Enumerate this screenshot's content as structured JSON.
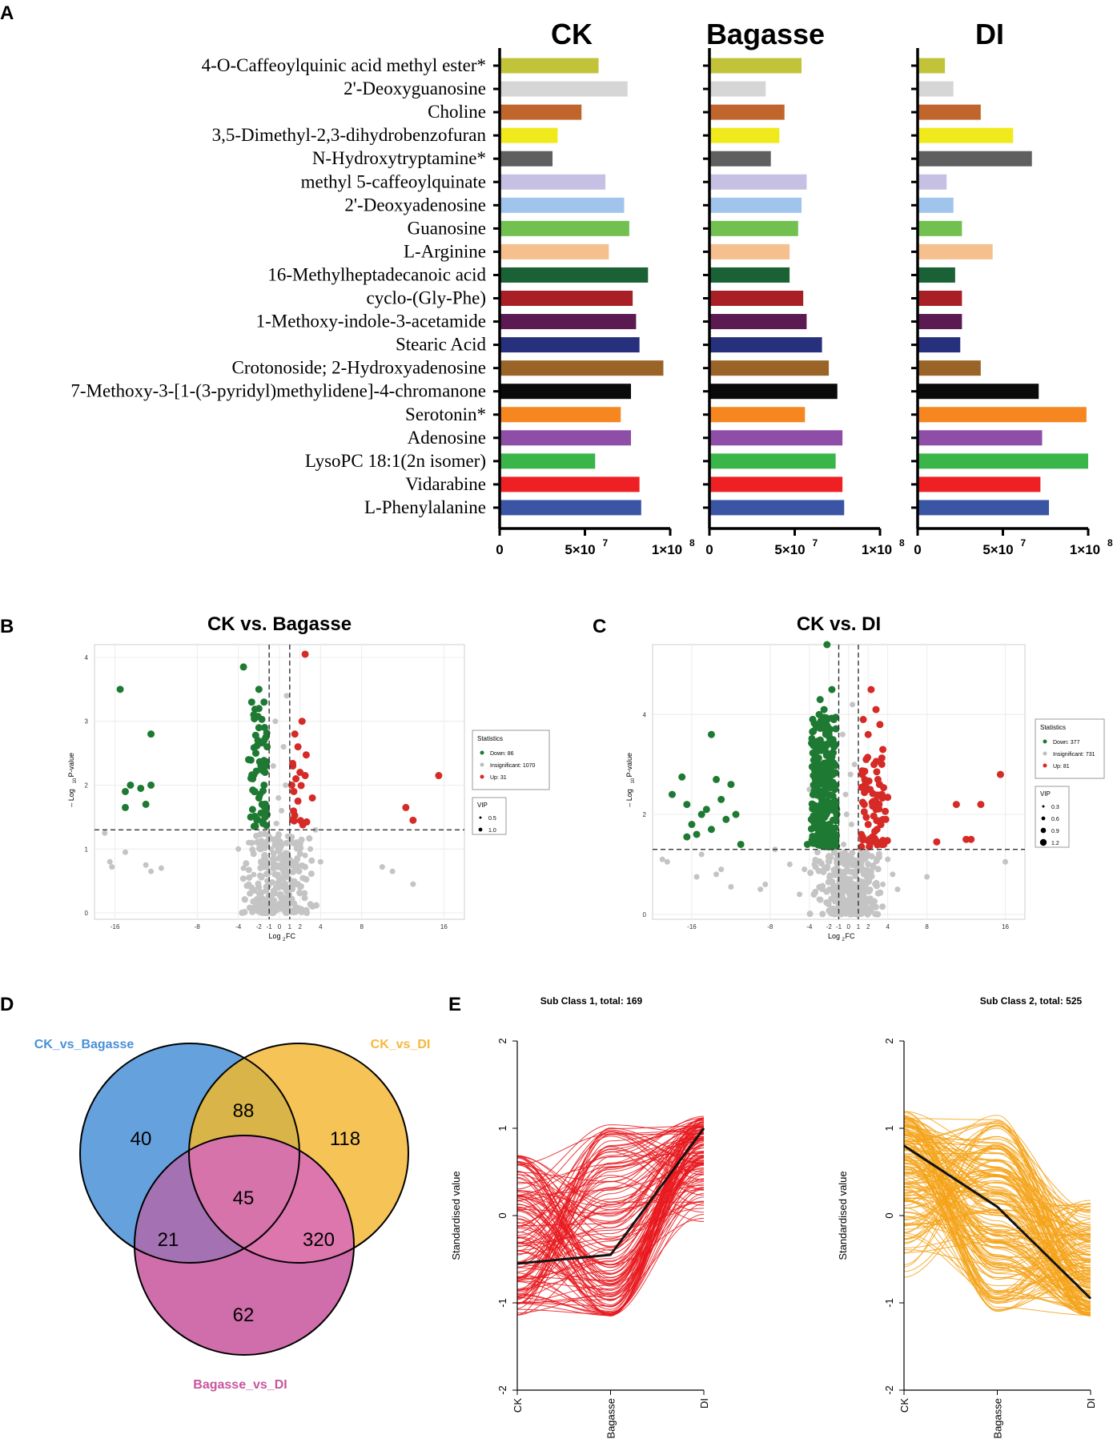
{
  "panel_labels": {
    "a": "A",
    "b": "B",
    "c": "C",
    "d": "D",
    "e": "E"
  },
  "chart_data": [
    {
      "id": "A",
      "type": "bar",
      "orientation": "horizontal",
      "panel_titles": [
        "CK",
        "Bagasse",
        "DI"
      ],
      "categories": [
        "4-O-Caffeoylquinic acid methyl ester*",
        "2'-Deoxyguanosine",
        "Choline",
        "3,5-Dimethyl-2,3-dihydrobenzofuran",
        "N-Hydroxytryptamine*",
        "methyl 5-caffeoylquinate",
        "2'-Deoxyadenosine",
        "Guanosine",
        "L-Arginine",
        "16-Methylheptadecanoic acid",
        "cyclo-(Gly-Phe)",
        "1-Methoxy-indole-3-acetamide",
        "Stearic Acid",
        "Crotonoside; 2-Hydroxyadenosine",
        "7-Methoxy-3-[1-(3-pyridyl)methylidene]-4-chromanone",
        "Serotonin*",
        "Adenosine",
        "LysoPC 18:1(2n isomer)",
        "Vidarabine",
        "L-Phenylalanine"
      ],
      "colors": [
        "#c1c43a",
        "#d6d6d6",
        "#c0652c",
        "#f0ea1c",
        "#5f5f5f",
        "#c6c0e4",
        "#a0c4ec",
        "#72c050",
        "#f5c08e",
        "#1a6236",
        "#a82025",
        "#5b1a52",
        "#27307c",
        "#9a6428",
        "#0a0a0a",
        "#f6861f",
        "#8e4ea8",
        "#3ab54a",
        "#ee2024",
        "#3a55a4"
      ],
      "series": [
        {
          "name": "CK",
          "values": [
            58,
            75,
            48,
            34,
            31,
            62,
            73,
            76,
            64,
            87,
            78,
            80,
            82,
            96,
            77,
            71,
            77,
            56,
            82,
            83
          ]
        },
        {
          "name": "Bagasse",
          "values": [
            54,
            33,
            44,
            41,
            36,
            57,
            54,
            52,
            47,
            47,
            55,
            57,
            66,
            70,
            75,
            56,
            78,
            74,
            78,
            79
          ]
        },
        {
          "name": "DI",
          "values": [
            16,
            21,
            37,
            56,
            67,
            17,
            21,
            26,
            44,
            22,
            26,
            26,
            25,
            37,
            71,
            99,
            73,
            100,
            72,
            77
          ]
        }
      ],
      "value_unit_note": "values in units of 1e6",
      "xlim": [
        0,
        100
      ],
      "xtick_labels": {
        "zero": "0",
        "mid_base": "5×10",
        "mid_exp": "7",
        "max_base": "1×10",
        "max_exp": "8"
      }
    },
    {
      "id": "B",
      "type": "scatter",
      "title": "CK vs. Bagasse",
      "xlabel": "Log",
      "xlabel_sub": "2",
      "xlabel_tail": "FC",
      "ylabel": "– Log",
      "ylabel_sub": "10",
      "ylabel_tail": "P-value",
      "xlim": [
        -18,
        18
      ],
      "ylim": [
        -0.1,
        4.2
      ],
      "xticks": [
        -16,
        -8,
        -4,
        -2,
        -1,
        0,
        1,
        2,
        4,
        8,
        16
      ],
      "yticks": [
        0,
        1,
        2,
        3,
        4
      ],
      "vlines": [
        -1,
        1
      ],
      "hline": 1.3,
      "legend": {
        "stats_title": "Statistics",
        "stats_items": [
          {
            "label": "Down: 86",
            "color": "#1e7a32"
          },
          {
            "label": "Insignificant: 1070",
            "color": "#bdbdbd"
          },
          {
            "label": "Up: 31",
            "color": "#d52a26"
          }
        ],
        "vip_title": "VIP",
        "vip_items": [
          "0.5",
          "1.0"
        ]
      },
      "points": {
        "down": [
          [
            -15.5,
            3.5
          ],
          [
            -15,
            1.65
          ],
          [
            -15,
            1.9
          ],
          [
            -14.5,
            2.0
          ],
          [
            -13.5,
            1.95
          ],
          [
            -13,
            1.7
          ],
          [
            -12.5,
            2.8
          ],
          [
            -12.5,
            2.0
          ],
          [
            -3.5,
            3.85
          ],
          [
            -2,
            3.5
          ],
          [
            -2,
            3.2
          ],
          [
            -1.5,
            3.3
          ],
          [
            -2.5,
            3.1
          ],
          [
            -2,
            2.9
          ],
          [
            -1.5,
            2.7
          ],
          [
            -2.3,
            2.5
          ],
          [
            -1.8,
            2.3
          ],
          [
            -2.6,
            2.1
          ],
          [
            -1.5,
            2.0
          ],
          [
            -2,
            1.8
          ],
          [
            -1.3,
            1.6
          ],
          [
            -2.2,
            1.45
          ],
          [
            -1.6,
            1.4
          ],
          [
            -2.8,
            1.5
          ],
          [
            -1.2,
            2.6
          ],
          [
            -3,
            2.4
          ],
          [
            -1.4,
            2.2
          ],
          [
            -2.4,
            1.9
          ],
          [
            -1.7,
            1.7
          ],
          [
            -2.1,
            2.7
          ],
          [
            -1.4,
            1.5
          ],
          [
            -2.7,
            3.3
          ]
        ],
        "up": [
          [
            2.5,
            4.05
          ],
          [
            2.2,
            3.0
          ],
          [
            1.5,
            2.8
          ],
          [
            1.8,
            2.6
          ],
          [
            1.3,
            2.3
          ],
          [
            2.0,
            2.2
          ],
          [
            1.6,
            2.1
          ],
          [
            2.5,
            2.15
          ],
          [
            1.4,
            1.9
          ],
          [
            1.8,
            1.75
          ],
          [
            3.2,
            1.8
          ],
          [
            1.2,
            2.0
          ],
          [
            12.3,
            1.65
          ],
          [
            13,
            1.45
          ],
          [
            15.5,
            2.15
          ]
        ],
        "insig": [
          [
            -17,
            1.25
          ],
          [
            -16.5,
            0.8
          ],
          [
            -16.3,
            0.72
          ],
          [
            -15,
            0.95
          ],
          [
            -13,
            0.75
          ],
          [
            -12.5,
            0.65
          ],
          [
            -11.5,
            0.7
          ],
          [
            10,
            0.72
          ],
          [
            11,
            0.65
          ],
          [
            13,
            0.45
          ],
          [
            -0.5,
            0.2
          ],
          [
            0,
            0.1
          ],
          [
            0.3,
            0.4
          ],
          [
            -0.2,
            0.6
          ],
          [
            0.5,
            0.8
          ],
          [
            -0.8,
            1.0
          ],
          [
            0.8,
            1.2
          ],
          [
            -1.5,
            0.9
          ],
          [
            1.5,
            0.7
          ],
          [
            -2.5,
            0.6
          ],
          [
            2.5,
            0.9
          ],
          [
            -3,
            1.1
          ],
          [
            3,
            1.0
          ],
          [
            -0.3,
            1.4
          ],
          [
            0.2,
            1.6
          ],
          [
            0.6,
            2.0
          ],
          [
            -0.6,
            2.3
          ],
          [
            0.4,
            2.6
          ],
          [
            -0.1,
            1.8
          ],
          [
            0.7,
            3.4
          ],
          [
            -0.4,
            3.0
          ],
          [
            1.2,
            1.1
          ],
          [
            -1.2,
            0.5
          ],
          [
            2.0,
            0.4
          ],
          [
            -2.0,
            0.3
          ],
          [
            0,
            0.5
          ],
          [
            0.1,
            0.9
          ],
          [
            -0.6,
            0.35
          ],
          [
            0.9,
            0.55
          ],
          [
            4,
            0.8
          ],
          [
            -4,
            1.0
          ],
          [
            3.5,
            1.3
          ],
          [
            -3.5,
            0.7
          ]
        ]
      }
    },
    {
      "id": "C",
      "type": "scatter",
      "title": "CK vs. DI",
      "xlabel": "Log",
      "xlabel_sub": "2",
      "xlabel_tail": "FC",
      "ylabel": "– Log",
      "ylabel_sub": "10",
      "ylabel_tail": "P-value",
      "xlim": [
        -20,
        18
      ],
      "ylim": [
        -0.1,
        5.4
      ],
      "xticks": [
        -16,
        -8,
        -4,
        -2,
        -1,
        0,
        1,
        2,
        4,
        8,
        16
      ],
      "yticks": [
        0,
        2,
        4
      ],
      "vlines": [
        -1,
        1
      ],
      "hline": 1.3,
      "legend": {
        "stats_title": "Statistics",
        "stats_items": [
          {
            "label": "Down: 377",
            "color": "#1e7a32"
          },
          {
            "label": "Insignificant: 731",
            "color": "#bdbdbd"
          },
          {
            "label": "Up: 81",
            "color": "#d52a26"
          }
        ],
        "vip_title": "VIP",
        "vip_items": [
          "0.3",
          "0.6",
          "0.9",
          "1.2"
        ]
      },
      "points": {
        "down": [
          [
            -14,
            3.6
          ],
          [
            -18,
            2.4
          ],
          [
            -17,
            2.75
          ],
          [
            -16.5,
            2.2
          ],
          [
            -16,
            1.8
          ],
          [
            -15.5,
            1.6
          ],
          [
            -15,
            2.0
          ],
          [
            -14.5,
            2.1
          ],
          [
            -13.5,
            2.7
          ],
          [
            -13,
            2.3
          ],
          [
            -12.5,
            1.9
          ],
          [
            -12,
            2.6
          ],
          [
            -11.5,
            2.0
          ],
          [
            -11,
            1.4
          ],
          [
            -14,
            1.7
          ],
          [
            -16.5,
            1.55
          ],
          [
            -2.2,
            5.4
          ],
          [
            -2.5,
            4.1
          ],
          [
            -3,
            4.0
          ],
          [
            -1.5,
            3.9
          ],
          [
            -2,
            3.6
          ],
          [
            -3.5,
            3.2
          ],
          [
            -2.7,
            3.0
          ],
          [
            -1.6,
            2.8
          ],
          [
            -2.3,
            2.6
          ],
          [
            -3.2,
            2.4
          ],
          [
            -1.8,
            2.2
          ],
          [
            -2.6,
            2.0
          ],
          [
            -3.8,
            1.9
          ],
          [
            -1.5,
            1.7
          ],
          [
            -2.1,
            1.5
          ],
          [
            -3.1,
            1.6
          ],
          [
            -4.2,
            1.4
          ],
          [
            -1.3,
            1.45
          ],
          [
            -2.8,
            2.2
          ],
          [
            -1.9,
            3.2
          ],
          [
            -2.4,
            3.4
          ],
          [
            -3.4,
            2.7
          ],
          [
            -1.4,
            2.5
          ],
          [
            -2.0,
            1.8
          ],
          [
            -3.0,
            1.45
          ],
          [
            -1.7,
            4.5
          ],
          [
            -1.2,
            2.0
          ],
          [
            -2.9,
            4.3
          ]
        ],
        "up": [
          [
            2.3,
            4.5
          ],
          [
            2.8,
            4.1
          ],
          [
            1.5,
            3.9
          ],
          [
            3.2,
            3.8
          ],
          [
            2.0,
            3.6
          ],
          [
            3.5,
            3.3
          ],
          [
            1.8,
            3.1
          ],
          [
            2.6,
            3.0
          ],
          [
            1.4,
            2.8
          ],
          [
            3.0,
            2.7
          ],
          [
            2.2,
            2.5
          ],
          [
            3.4,
            2.4
          ],
          [
            1.6,
            2.2
          ],
          [
            2.8,
            2.1
          ],
          [
            3.8,
            1.9
          ],
          [
            2.0,
            1.8
          ],
          [
            1.3,
            1.6
          ],
          [
            2.4,
            1.5
          ],
          [
            3.6,
            1.4
          ],
          [
            1.7,
            2.6
          ],
          [
            2.9,
            1.7
          ],
          [
            9,
            1.45
          ],
          [
            11,
            2.2
          ],
          [
            12,
            1.5
          ],
          [
            12.5,
            1.5
          ],
          [
            13.5,
            2.2
          ],
          [
            15.5,
            2.8
          ]
        ],
        "insig": [
          [
            -19,
            1.1
          ],
          [
            -18.5,
            1.05
          ],
          [
            -15.5,
            0.75
          ],
          [
            -15,
            1.2
          ],
          [
            -13.5,
            0.8
          ],
          [
            -13,
            0.9
          ],
          [
            -12,
            0.55
          ],
          [
            -8.5,
            0.6
          ],
          [
            -7.5,
            1.3
          ],
          [
            -6,
            1.0
          ],
          [
            -5,
            0.4
          ],
          [
            -4,
            2.5
          ],
          [
            -3,
            0.3
          ],
          [
            -2,
            0.5
          ],
          [
            -1,
            0.2
          ],
          [
            0,
            0.1
          ],
          [
            0.5,
            0.6
          ],
          [
            1,
            1.0
          ],
          [
            1.5,
            0.8
          ],
          [
            2,
            1.2
          ],
          [
            3,
            0.9
          ],
          [
            4,
            1.1
          ],
          [
            5,
            0.5
          ],
          [
            -0.5,
            1.4
          ],
          [
            0.3,
            1.8
          ],
          [
            -0.3,
            2.4
          ],
          [
            0.6,
            3.0
          ],
          [
            -0.6,
            3.6
          ],
          [
            0.4,
            4.2
          ],
          [
            -0.2,
            2.0
          ],
          [
            0.2,
            2.8
          ],
          [
            8,
            0.75
          ],
          [
            -9,
            0.5
          ],
          [
            16,
            1.05
          ],
          [
            -4.5,
            0.9
          ],
          [
            4.5,
            0.8
          ],
          [
            -3.5,
            1.0
          ],
          [
            3.5,
            0.6
          ]
        ]
      }
    },
    {
      "id": "D",
      "type": "venn",
      "sets": [
        {
          "label": "CK_vs_Bagasse",
          "color": "#4a90d6"
        },
        {
          "label": "CK_vs_DI",
          "color": "#f5b83a"
        },
        {
          "label": "Bagasse_vs_DI",
          "color": "#c7559c"
        }
      ],
      "regions": {
        "only_a": "40",
        "only_b": "118",
        "only_c": "62",
        "ab": "88",
        "ac": "21",
        "bc": "320",
        "abc": "45"
      }
    },
    {
      "id": "E",
      "type": "line",
      "ylabel": "Standardised value",
      "categories": [
        "CK",
        "Bagasse",
        "DI"
      ],
      "ylim": [
        -2,
        2
      ],
      "yticks": [
        "-2",
        "-1",
        "0",
        "1",
        "2"
      ],
      "subplots": [
        {
          "title": "Sub Class 1, total: 169",
          "color": "#e8191f",
          "mean": [
            -0.55,
            -0.45,
            1.0
          ]
        },
        {
          "title": "Sub Class 2, total: 525",
          "color": "#f5a31a",
          "mean": [
            0.8,
            0.1,
            -0.95
          ]
        }
      ]
    }
  ]
}
